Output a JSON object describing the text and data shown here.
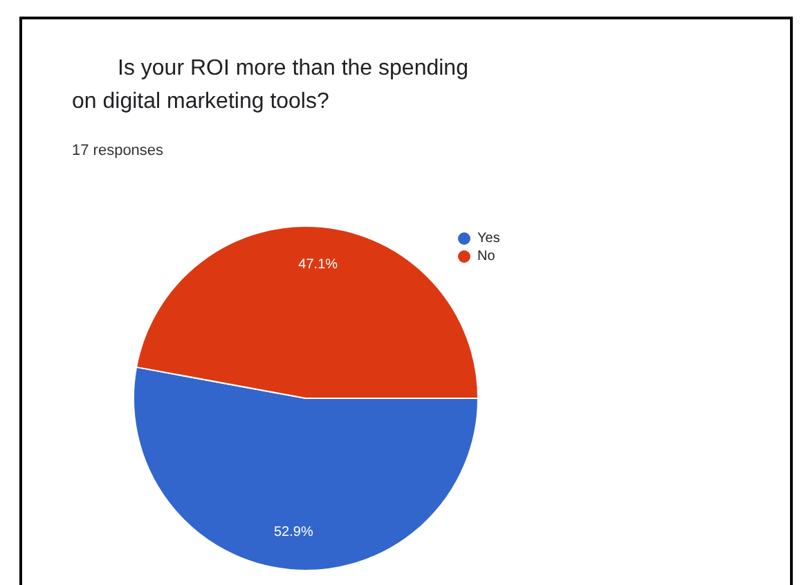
{
  "chart_data": {
    "type": "pie",
    "title": "Is your ROI more than the spending on digital marketing tools?",
    "subtitle": "17 responses",
    "categories": [
      "Yes",
      "No"
    ],
    "values": [
      52.9,
      47.1
    ],
    "value_labels": [
      "52.9%",
      "47.1%"
    ],
    "colors": [
      "#3366cc",
      "#dc3912"
    ],
    "legend": "top right"
  }
}
